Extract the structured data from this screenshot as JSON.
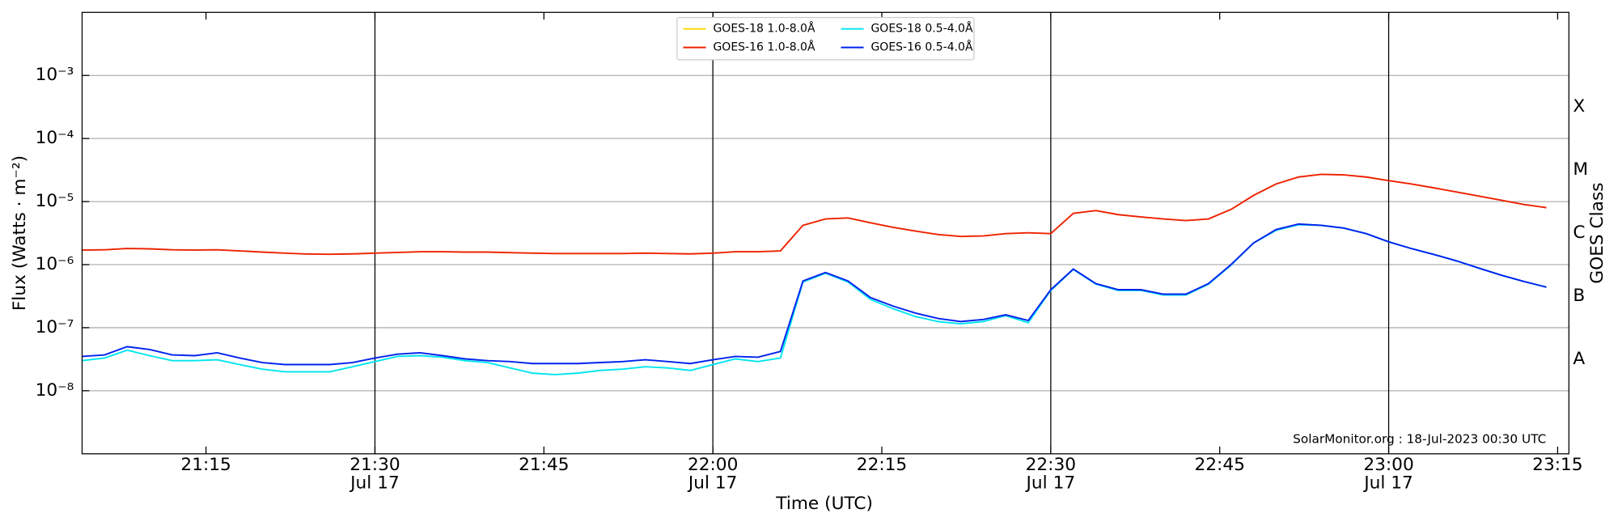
{
  "chart_data": {
    "type": "line",
    "x_label": "Time (UTC)",
    "y_label": "Flux (Watts · m⁻²)",
    "y2_label": "GOES Class",
    "annotation": "SolarMonitor.org : 18-Jul-2023 00:30 UTC",
    "log_y": true,
    "grid": true,
    "legend": "top-center",
    "xlim": [
      "21:04",
      "23:16"
    ],
    "ylim": [
      1e-09,
      0.01
    ],
    "y2lim": [
      1e-09,
      0.01
    ],
    "xticks": [
      "21:15",
      {
        "value": "21:30",
        "label": [
          "21:30",
          "Jul 17"
        ]
      },
      "21:45",
      {
        "value": "22:00",
        "label": [
          "22:00",
          "Jul 17"
        ]
      },
      "22:15",
      {
        "value": "22:30",
        "label": [
          "22:30",
          "Jul 17"
        ]
      },
      "22:45",
      {
        "value": "23:00",
        "label": [
          "23:00",
          "Jul 17"
        ]
      },
      "23:15"
    ],
    "vlines": [
      "21:30",
      "22:00",
      "22:30",
      "23:00"
    ],
    "yticks": [
      {
        "value": 1e-08,
        "label": "10⁻⁸"
      },
      {
        "value": 1e-07,
        "label": "10⁻⁷"
      },
      {
        "value": 1e-06,
        "label": "10⁻⁶"
      },
      {
        "value": 1e-05,
        "label": "10⁻⁵"
      },
      {
        "value": 0.0001,
        "label": "10⁻⁴"
      },
      {
        "value": 0.001,
        "label": "10⁻³"
      }
    ],
    "y2ticks": [
      {
        "value": 3.16e-08,
        "label": "A"
      },
      {
        "value": 3.16e-07,
        "label": "B"
      },
      {
        "value": 3.16e-06,
        "label": "C"
      },
      {
        "value": 3.16e-05,
        "label": "M"
      },
      {
        "value": 0.000316,
        "label": "X"
      }
    ],
    "x": [
      "21:04",
      "21:06",
      "21:08",
      "21:10",
      "21:12",
      "21:14",
      "21:16",
      "21:18",
      "21:20",
      "21:22",
      "21:24",
      "21:26",
      "21:28",
      "21:30",
      "21:32",
      "21:34",
      "21:36",
      "21:38",
      "21:40",
      "21:42",
      "21:44",
      "21:46",
      "21:48",
      "21:50",
      "21:52",
      "21:54",
      "21:56",
      "21:58",
      "22:00",
      "22:02",
      "22:04",
      "22:06",
      "22:08",
      "22:10",
      "22:12",
      "22:14",
      "22:16",
      "22:18",
      "22:20",
      "22:22",
      "22:24",
      "22:26",
      "22:28",
      "22:30",
      "22:32",
      "22:34",
      "22:36",
      "22:38",
      "22:40",
      "22:42",
      "22:44",
      "22:46",
      "22:48",
      "22:50",
      "22:52",
      "22:54",
      "22:56",
      "22:58",
      "23:00",
      "23:02",
      "23:04",
      "23:06",
      "23:08",
      "23:10",
      "23:12",
      "23:14"
    ],
    "series": [
      {
        "name": "GOES-18 1.0-8.0Å",
        "color": "#ffd700",
        "values": [
          null,
          null,
          null,
          null,
          null,
          null,
          null,
          null,
          null,
          null,
          null,
          null,
          null,
          null,
          null,
          null,
          null,
          null,
          null,
          null,
          null,
          null,
          null,
          null,
          null,
          null,
          null,
          null,
          null,
          null,
          null,
          null,
          null,
          null,
          null,
          null,
          null,
          null,
          null,
          null,
          null,
          null,
          null,
          null,
          null,
          null,
          null,
          null,
          null,
          null,
          null,
          null,
          null,
          null,
          null,
          null,
          null,
          null,
          null,
          null,
          null,
          null,
          null,
          null,
          null,
          null
        ]
      },
      {
        "name": "GOES-16 1.0-8.0Å",
        "color": "#ee2200",
        "values": [
          1.7e-06,
          1.72e-06,
          1.8e-06,
          1.78e-06,
          1.72e-06,
          1.7e-06,
          1.72e-06,
          1.65e-06,
          1.58e-06,
          1.52e-06,
          1.47e-06,
          1.46e-06,
          1.48e-06,
          1.52e-06,
          1.56e-06,
          1.6e-06,
          1.6e-06,
          1.58e-06,
          1.58e-06,
          1.55e-06,
          1.52e-06,
          1.5e-06,
          1.5e-06,
          1.5e-06,
          1.5e-06,
          1.52e-06,
          1.5e-06,
          1.48e-06,
          1.52e-06,
          1.6e-06,
          1.6e-06,
          1.65e-06,
          4.2e-06,
          5.3e-06,
          5.5e-06,
          4.6e-06,
          3.9e-06,
          3.4e-06,
          3e-06,
          2.8e-06,
          2.85e-06,
          3.1e-06,
          3.2e-06,
          3.1e-06,
          6.5e-06,
          7.2e-06,
          6.2e-06,
          5.7e-06,
          5.3e-06,
          5e-06,
          5.3e-06,
          7.5e-06,
          1.25e-05,
          1.9e-05,
          2.45e-05,
          2.7e-05,
          2.65e-05,
          2.45e-05,
          2.15e-05,
          1.9e-05,
          1.65e-05,
          1.42e-05,
          1.22e-05,
          1.05e-05,
          9e-06,
          8e-06
        ]
      },
      {
        "name": "GOES-18 0.5-4.0Å",
        "color": "#00e5ee",
        "values": [
          3e-08,
          3.3e-08,
          4.4e-08,
          3.6e-08,
          3e-08,
          3e-08,
          3.1e-08,
          2.6e-08,
          2.2e-08,
          2e-08,
          2e-08,
          2e-08,
          2.4e-08,
          2.9e-08,
          3.5e-08,
          3.6e-08,
          3.4e-08,
          3e-08,
          2.8e-08,
          2.3e-08,
          1.9e-08,
          1.8e-08,
          1.9e-08,
          2.1e-08,
          2.2e-08,
          2.4e-08,
          2.3e-08,
          2.1e-08,
          2.6e-08,
          3.2e-08,
          2.9e-08,
          3.3e-08,
          5.3e-07,
          7.3e-07,
          5.3e-07,
          2.8e-07,
          2e-07,
          1.5e-07,
          1.25e-07,
          1.15e-07,
          1.25e-07,
          1.55e-07,
          1.2e-07,
          3.9e-07,
          8.4e-07,
          4.9e-07,
          3.9e-07,
          3.9e-07,
          3.3e-07,
          3.3e-07,
          4.9e-07,
          9.8e-07,
          2.2e-06,
          3.5e-06,
          4.3e-06,
          4.2e-06,
          3.8e-06,
          3.1e-06,
          2.3e-06,
          1.8e-06,
          1.45e-06,
          1.15e-06,
          8.8e-07,
          6.8e-07,
          5.4e-07,
          4.4e-07
        ]
      },
      {
        "name": "GOES-16 0.5-4.0Å",
        "color": "#0022ee",
        "values": [
          3.5e-08,
          3.7e-08,
          5e-08,
          4.5e-08,
          3.7e-08,
          3.6e-08,
          4e-08,
          3.3e-08,
          2.8e-08,
          2.6e-08,
          2.6e-08,
          2.6e-08,
          2.8e-08,
          3.3e-08,
          3.8e-08,
          4e-08,
          3.6e-08,
          3.2e-08,
          3e-08,
          2.9e-08,
          2.7e-08,
          2.7e-08,
          2.7e-08,
          2.8e-08,
          2.9e-08,
          3.1e-08,
          2.9e-08,
          2.7e-08,
          3.1e-08,
          3.5e-08,
          3.4e-08,
          4.2e-08,
          5.5e-07,
          7.5e-07,
          5.5e-07,
          3e-07,
          2.2e-07,
          1.7e-07,
          1.4e-07,
          1.25e-07,
          1.35e-07,
          1.6e-07,
          1.3e-07,
          4e-07,
          8.5e-07,
          5e-07,
          4e-07,
          4e-07,
          3.4e-07,
          3.4e-07,
          5e-07,
          1e-06,
          2.2e-06,
          3.6e-06,
          4.4e-06,
          4.2e-06,
          3.8e-06,
          3.1e-06,
          2.3e-06,
          1.8e-06,
          1.45e-06,
          1.15e-06,
          8.8e-07,
          6.8e-07,
          5.4e-07,
          4.4e-07
        ]
      }
    ]
  }
}
